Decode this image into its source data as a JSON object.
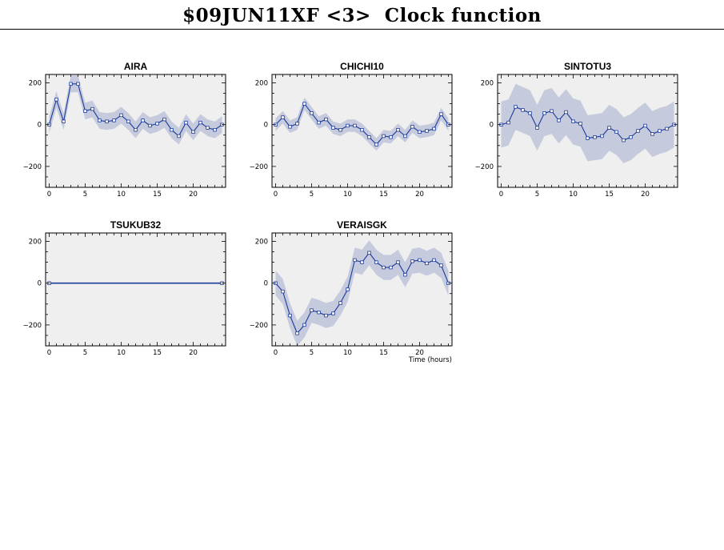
{
  "title": "$09JUN11XF <3>  Clock function",
  "colors": {
    "plot_bg": "#efefef",
    "band": "#c6cadd",
    "line": "#1a3a9a",
    "marker_fill": "#ffffff"
  },
  "chart_data": [
    {
      "type": "line",
      "title": "AIRA",
      "xlabel": "",
      "xlim": [
        -0.5,
        24.5
      ],
      "ylim": [
        -300,
        240
      ],
      "xticks": [
        0,
        5,
        10,
        15,
        20
      ],
      "yticks": [
        200,
        0,
        -200
      ],
      "x": [
        0,
        1,
        2,
        3,
        4,
        5,
        6,
        7,
        8,
        9,
        10,
        11,
        12,
        13,
        14,
        15,
        16,
        17,
        18,
        19,
        20,
        21,
        22,
        23,
        24
      ],
      "values": [
        0,
        120,
        15,
        195,
        195,
        65,
        75,
        20,
        15,
        20,
        45,
        15,
        -25,
        20,
        -5,
        5,
        25,
        -25,
        -55,
        10,
        -35,
        10,
        -15,
        -25,
        0
      ],
      "band": [
        40,
        40,
        40,
        40,
        40,
        40,
        40,
        40,
        40,
        40,
        40,
        40,
        40,
        40,
        40,
        40,
        40,
        40,
        40,
        40,
        40,
        40,
        40,
        40,
        40
      ],
      "band_edge": 35
    },
    {
      "type": "line",
      "title": "CHICHI10",
      "xlabel": "",
      "xlim": [
        -0.5,
        24.5
      ],
      "ylim": [
        -300,
        240
      ],
      "xticks": [
        0,
        5,
        10,
        15,
        20
      ],
      "yticks": [
        200,
        0,
        -200
      ],
      "x": [
        0,
        1,
        2,
        3,
        4,
        5,
        6,
        7,
        8,
        9,
        10,
        11,
        12,
        13,
        14,
        15,
        16,
        17,
        18,
        19,
        20,
        21,
        22,
        23,
        24
      ],
      "values": [
        0,
        35,
        -10,
        5,
        100,
        55,
        10,
        25,
        -15,
        -25,
        -5,
        -5,
        -25,
        -60,
        -95,
        -55,
        -60,
        -25,
        -55,
        -10,
        -35,
        -30,
        -20,
        50,
        0
      ],
      "band": [
        30,
        30,
        30,
        30,
        30,
        30,
        30,
        30,
        30,
        30,
        30,
        30,
        30,
        30,
        30,
        30,
        30,
        30,
        30,
        30,
        30,
        30,
        30,
        30,
        30
      ],
      "band_edge": 30
    },
    {
      "type": "line",
      "title": "SINTOTU3",
      "xlabel": "",
      "xlim": [
        -0.5,
        24.5
      ],
      "ylim": [
        -300,
        240
      ],
      "xticks": [
        0,
        5,
        10,
        15,
        20
      ],
      "yticks": [
        200,
        0,
        -200
      ],
      "x": [
        0,
        1,
        2,
        3,
        4,
        5,
        6,
        7,
        8,
        9,
        10,
        11,
        12,
        13,
        14,
        15,
        16,
        17,
        18,
        19,
        20,
        21,
        22,
        23,
        24
      ],
      "values": [
        0,
        10,
        85,
        70,
        55,
        -15,
        55,
        65,
        20,
        60,
        15,
        5,
        -65,
        -60,
        -55,
        -15,
        -35,
        -75,
        -60,
        -30,
        -5,
        -45,
        -30,
        -20,
        0
      ],
      "band": [
        110,
        110,
        110,
        110,
        110,
        110,
        110,
        110,
        110,
        110,
        110,
        110,
        110,
        110,
        110,
        110,
        110,
        110,
        110,
        110,
        110,
        110,
        110,
        110,
        110
      ],
      "band_edge": 110
    },
    {
      "type": "line",
      "title": "TSUKUB32",
      "xlabel": "",
      "xlim": [
        -0.5,
        24.5
      ],
      "ylim": [
        -300,
        240
      ],
      "xticks": [
        0,
        5,
        10,
        15,
        20
      ],
      "yticks": [
        200,
        0,
        -200
      ],
      "x": [
        0,
        24
      ],
      "values": [
        0,
        0
      ],
      "band": [
        0,
        0
      ],
      "band_edge": 0
    },
    {
      "type": "line",
      "title": "VERAISGK",
      "xlabel": "Time (hours)",
      "xlim": [
        -0.5,
        24.5
      ],
      "ylim": [
        -300,
        240
      ],
      "xticks": [
        0,
        5,
        10,
        15,
        20
      ],
      "yticks": [
        200,
        0,
        -200
      ],
      "x": [
        0,
        1,
        2,
        3,
        4,
        5,
        6,
        7,
        8,
        9,
        10,
        11,
        12,
        13,
        14,
        15,
        16,
        17,
        18,
        19,
        20,
        21,
        22,
        23,
        24
      ],
      "values": [
        0,
        -40,
        -155,
        -240,
        -200,
        -130,
        -140,
        -155,
        -145,
        -95,
        -30,
        110,
        100,
        145,
        100,
        75,
        75,
        100,
        40,
        105,
        110,
        95,
        110,
        85,
        0
      ],
      "band": [
        60,
        60,
        60,
        60,
        60,
        60,
        60,
        60,
        60,
        60,
        60,
        60,
        60,
        60,
        60,
        60,
        60,
        60,
        60,
        60,
        60,
        60,
        60,
        60,
        60
      ],
      "band_edge": 60
    }
  ]
}
